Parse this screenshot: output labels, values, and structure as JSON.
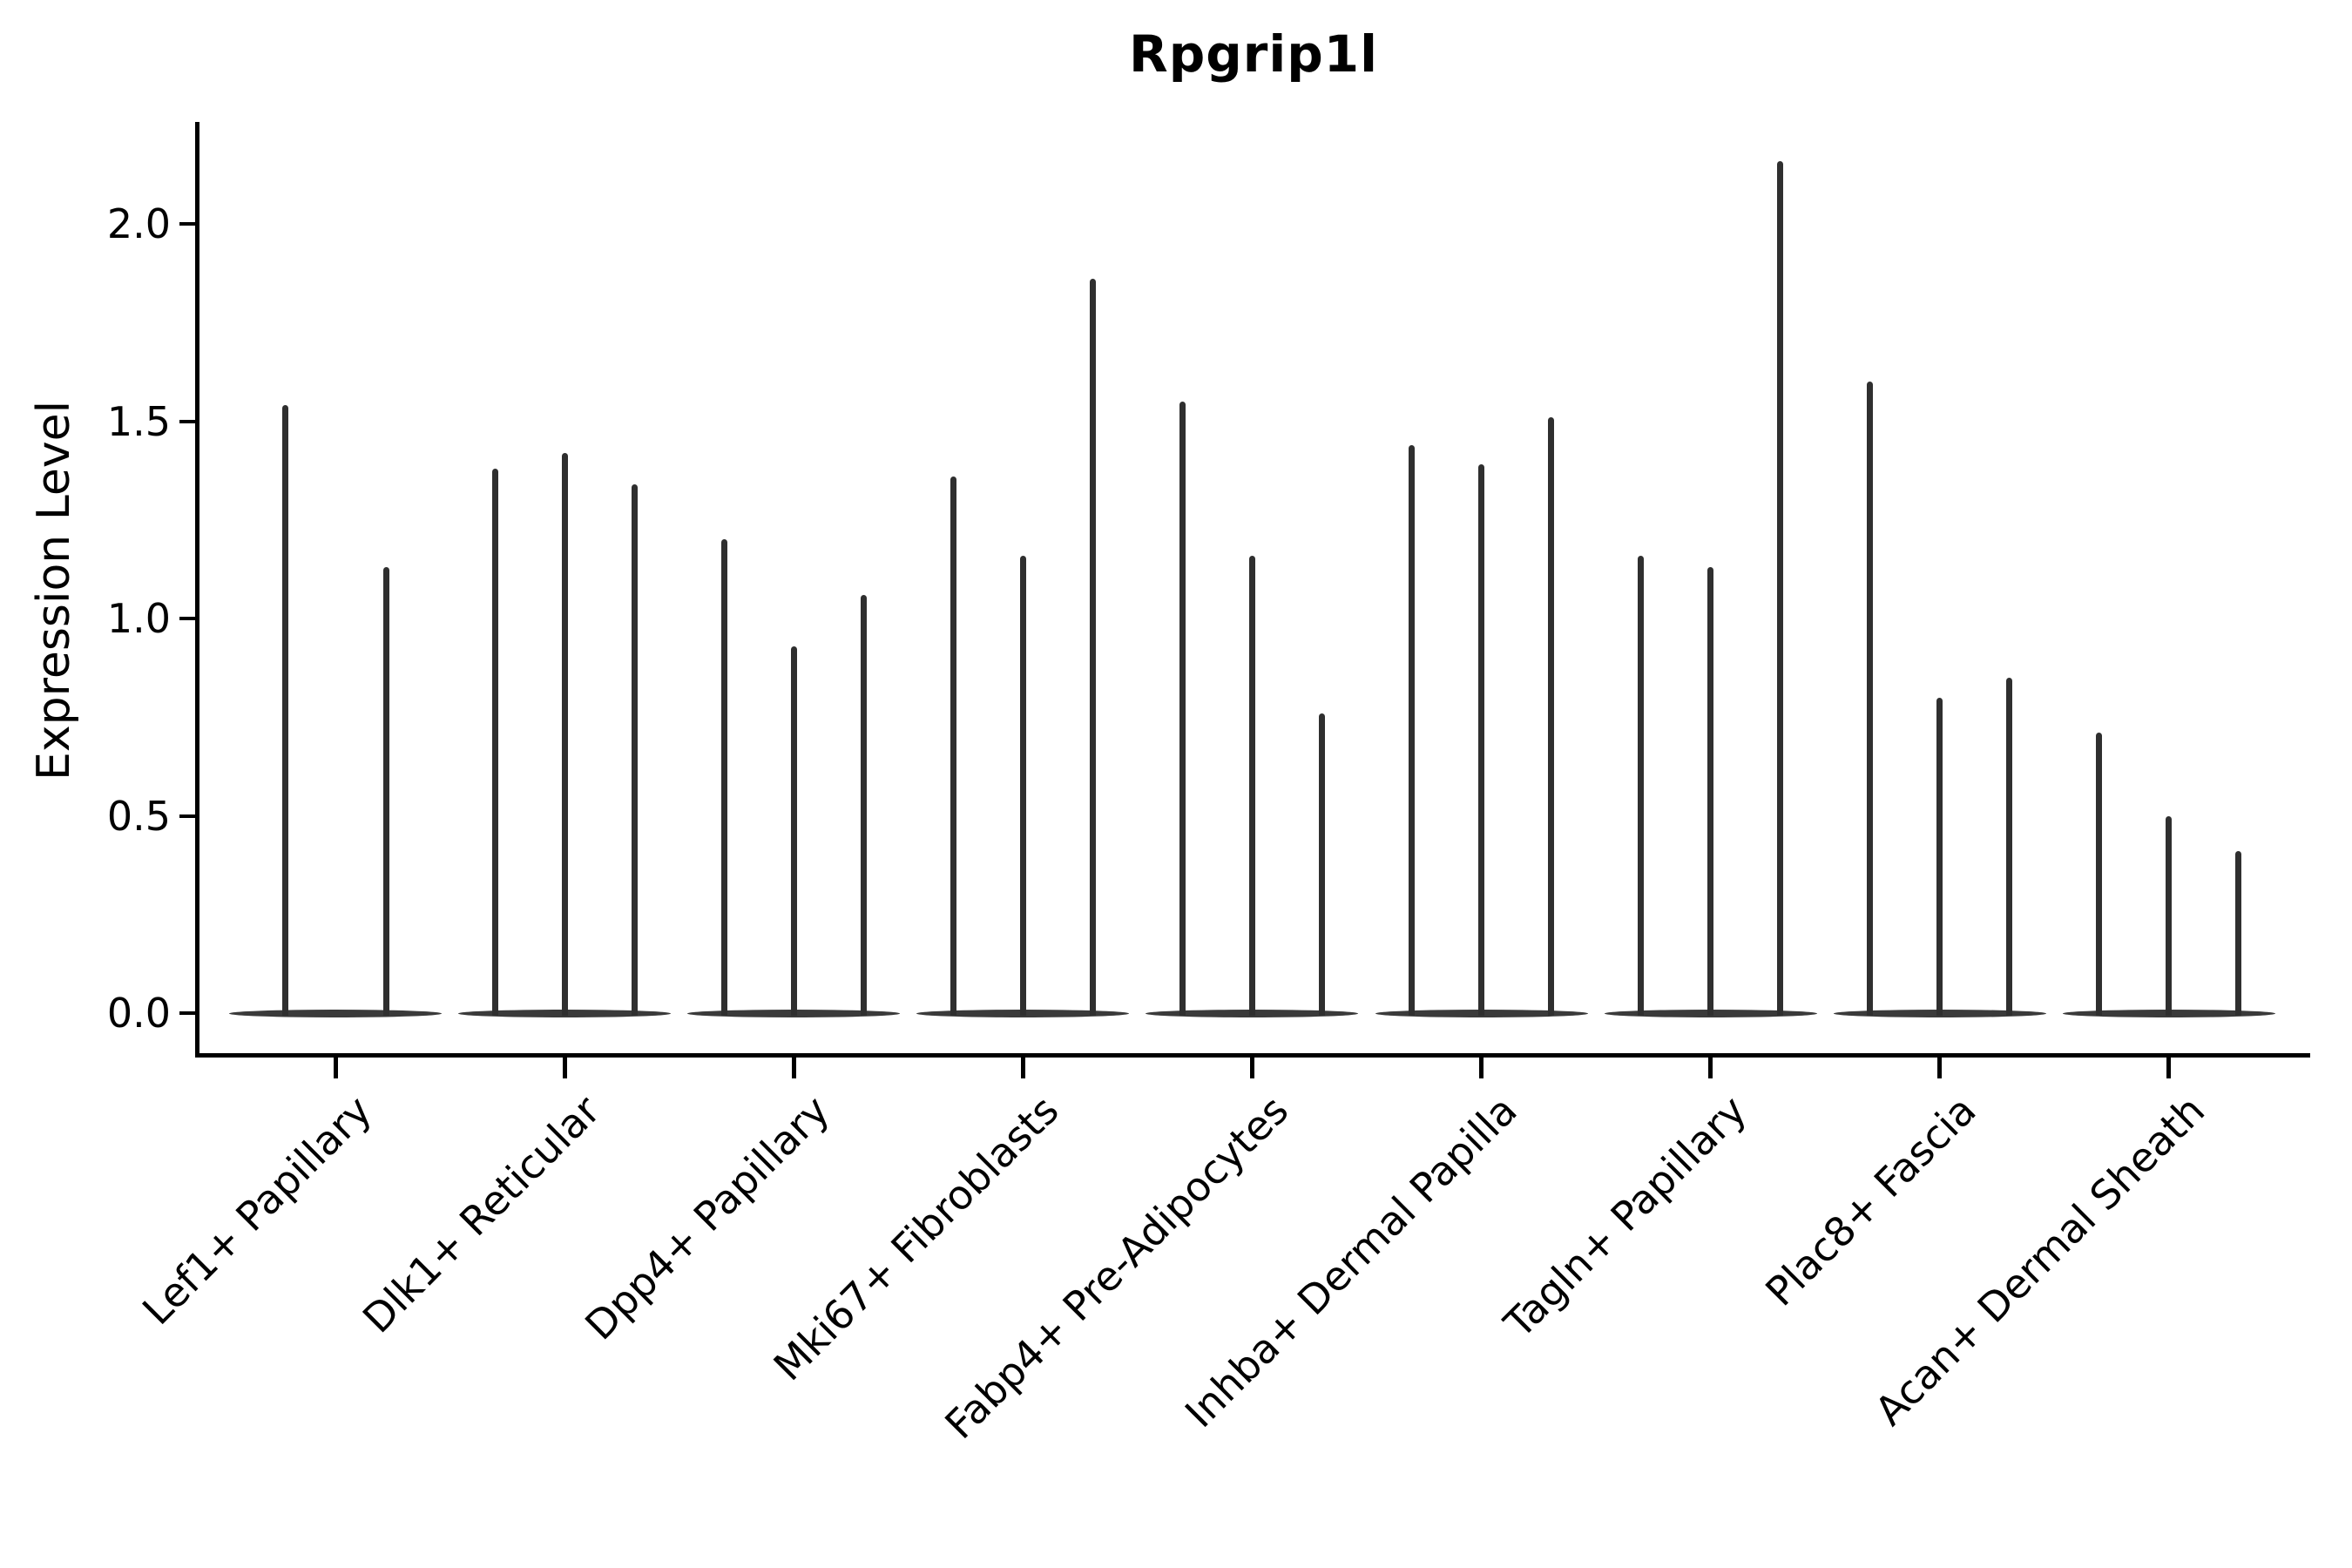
{
  "figure": {
    "title": "Rpgrip1l",
    "ylabel": "Expression Level"
  },
  "chart_data": {
    "type": "violin",
    "title": "Rpgrip1l",
    "xlabel": "",
    "ylabel": "Expression Level",
    "legend": null,
    "grid": false,
    "ylim": [
      -0.1,
      2.26
    ],
    "ytick_values": [
      0.0,
      0.5,
      1.0,
      1.5,
      2.0
    ],
    "ytick_labels": [
      "0.0",
      "0.5",
      "1.0",
      "1.5",
      "2.0"
    ],
    "categories": [
      "Lef1+ Papillary",
      "Dlk1+ Reticular",
      "Dpp4+ Papillary",
      "Mki67+ Fibroblasts",
      "Fabp4+ Pre-Adipocytes",
      "Inhba+ Dermal Papilla",
      "Tagln+ Papillary",
      "Plac8+ Fascia",
      "Acan+ Dermal Sheath"
    ],
    "violins": [
      {
        "category": "Lef1+ Papillary",
        "spike_max_values": [
          1.54,
          1.13
        ]
      },
      {
        "category": "Dlk1+ Reticular",
        "spike_max_values": [
          1.38,
          1.42,
          1.34
        ]
      },
      {
        "category": "Dpp4+ Papillary",
        "spike_max_values": [
          1.2,
          0.93,
          1.06
        ]
      },
      {
        "category": "Mki67+ Fibroblasts",
        "spike_max_values": [
          1.36,
          1.16,
          1.86
        ]
      },
      {
        "category": "Fabp4+ Pre-Adipocytes",
        "spike_max_values": [
          1.55,
          1.16,
          0.76
        ]
      },
      {
        "category": "Inhba+ Dermal Papilla",
        "spike_max_values": [
          1.44,
          1.39,
          1.51
        ]
      },
      {
        "category": "Tagln+ Papillary",
        "spike_max_values": [
          1.16,
          1.13,
          2.16
        ]
      },
      {
        "category": "Plac8+ Fascia",
        "spike_max_values": [
          1.6,
          0.8,
          0.85
        ]
      },
      {
        "category": "Acan+ Dermal Sheath",
        "spike_max_values": [
          0.71,
          0.5,
          0.41
        ]
      }
    ],
    "baseline_value": 0.0,
    "colors": {
      "spike": "#2f2f2f",
      "violin_base": "#3a3a3a",
      "axis": "#000000",
      "text": "#000000",
      "background": "#ffffff"
    }
  }
}
